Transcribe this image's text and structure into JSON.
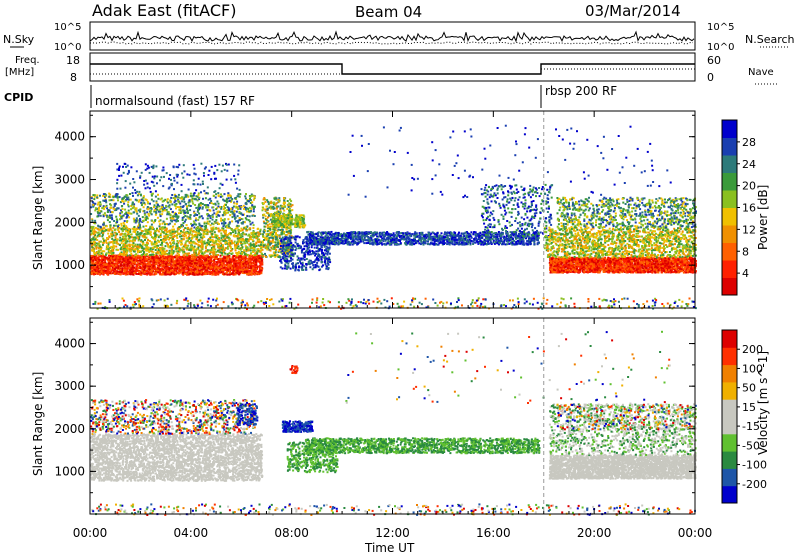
{
  "header": {
    "radar": "Adak East (fitACF)",
    "beam": "Beam 04",
    "date": "03/Mar/2014"
  },
  "labels": {
    "nsky": "N.Sky",
    "nsearch": "N.Search",
    "freq": "Freq.",
    "mhz": "[MHz]",
    "nave": "Nave",
    "cpid": "CPID",
    "nsky_hi": "10^5",
    "nsky_lo": "10^0",
    "freq_hi": "18",
    "freq_lo": "8",
    "nave_hi": "60",
    "nave_lo": "0"
  },
  "cpid_segments": [
    {
      "label": "normalsound (fast) 157 RF"
    },
    {
      "label": "rbsp 200 RF"
    }
  ],
  "colors": {
    "power": [
      "#0000cc",
      "#1a3fb0",
      "#2d7a7a",
      "#3a9a3a",
      "#8ac020",
      "#f0c000",
      "#f09000",
      "#ff6000",
      "#ff2000",
      "#dd0000"
    ],
    "velocity": [
      "#0000cc",
      "#1e56a8",
      "#2a8a40",
      "#60c030",
      "#c8c8c0",
      "#c8c8c0",
      "#f0b000",
      "#f08000",
      "#ff3000",
      "#dd0000"
    ]
  },
  "chart_data": [
    {
      "type": "heatmap",
      "panel": "power",
      "ylabel": "Slant Range [km]",
      "colorbar_label": "Power [dB]",
      "colorbar_ticks": [
        "4",
        "8",
        "12",
        "16",
        "20",
        "24",
        "28"
      ],
      "y_ticks": [
        "1000",
        "2000",
        "3000",
        "4000"
      ],
      "ylim": [
        0,
        4600
      ],
      "xlim_hours": [
        0,
        24
      ],
      "features": [
        {
          "name": "morning strong echoes",
          "t_start": 0.0,
          "t_end": 7.0,
          "range_km": [
            800,
            1300
          ],
          "level": "high"
        },
        {
          "name": "morning weaker band",
          "t_start": 0.0,
          "t_end": 7.0,
          "range_km": [
            1300,
            2700
          ],
          "level": "mid"
        },
        {
          "name": "midday band",
          "t_start": 8.0,
          "t_end": 17.5,
          "range_km": [
            1500,
            1800
          ],
          "level": "low"
        },
        {
          "name": "evening strong echoes",
          "t_start": 18.5,
          "t_end": 24.0,
          "range_km": [
            800,
            1200
          ],
          "level": "high"
        },
        {
          "name": "evening weaker band",
          "t_start": 18.0,
          "t_end": 24.0,
          "range_km": [
            1200,
            2600
          ],
          "level": "mid"
        }
      ]
    },
    {
      "type": "heatmap",
      "panel": "velocity",
      "ylabel": "Slant Range [km]",
      "xlabel": "Time UT",
      "colorbar_label": "Velocity [m s^-1]",
      "colorbar_ticks": [
        "200",
        "100",
        "50",
        "15",
        "-15",
        "-50",
        "-100",
        "-200"
      ],
      "y_ticks": [
        "1000",
        "2000",
        "3000",
        "4000"
      ],
      "x_ticks": [
        "00:00",
        "04:00",
        "08:00",
        "12:00",
        "16:00",
        "20:00",
        "00:00"
      ],
      "ylim": [
        0,
        4600
      ],
      "xlim_hours": [
        0,
        24
      ]
    }
  ]
}
